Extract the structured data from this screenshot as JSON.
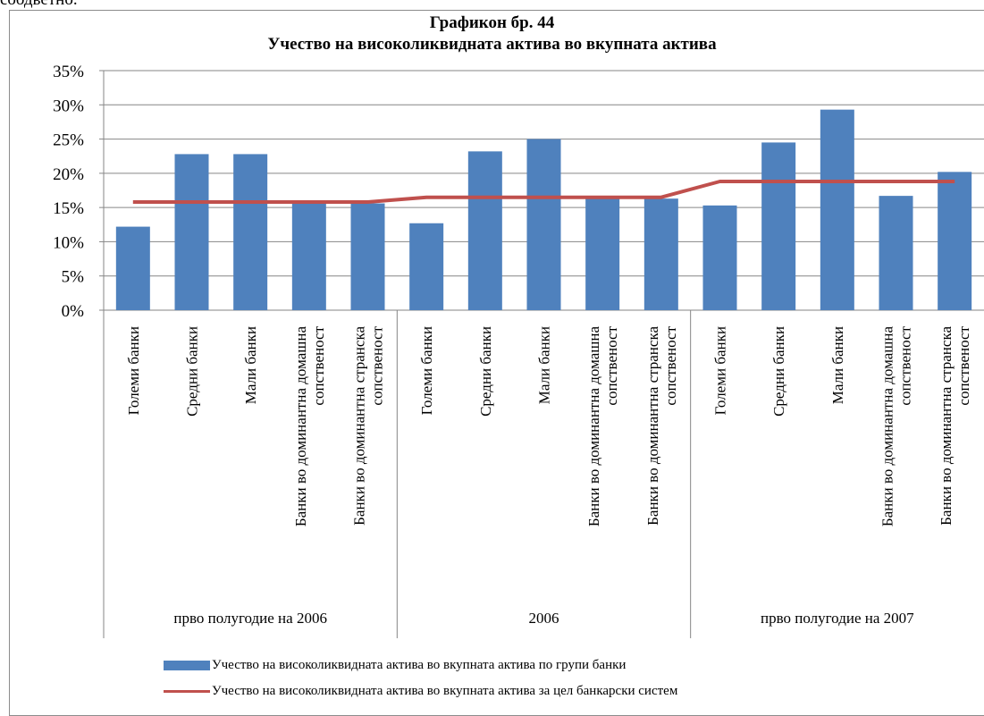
{
  "page_fragment": "соодветно.",
  "chart_data": {
    "type": "bar",
    "title": "Графикон бр. 44",
    "subtitle": "Учество на високоликвидната актива во вкупната актива",
    "ylim": [
      0,
      35
    ],
    "yticks": [
      "0%",
      "5%",
      "10%",
      "15%",
      "20%",
      "25%",
      "30%",
      "35%"
    ],
    "grid": true,
    "legend_position": "bottom",
    "groups": [
      {
        "label": "прво полугодие на 2006"
      },
      {
        "label": "2006"
      },
      {
        "label": "прво полугодие на  2007"
      }
    ],
    "categories": [
      [
        "Големи банки"
      ],
      [
        "Средни банки"
      ],
      [
        "Мали банки"
      ],
      [
        "Банки во доминантна домашна",
        "сопственост"
      ],
      [
        "Банки во доминантна странска",
        "сопственост"
      ],
      [
        "Големи банки"
      ],
      [
        "Средни банки"
      ],
      [
        "Мали банки"
      ],
      [
        "Банки во доминантна домашна",
        "сопственост"
      ],
      [
        "Банки во доминантна странска",
        "сопственост"
      ],
      [
        "Големи банки"
      ],
      [
        "Средни банки"
      ],
      [
        "Мали банки"
      ],
      [
        "Банки во доминантна домашна",
        "сопственост"
      ],
      [
        "Банки во доминантна странска",
        "сопственост"
      ]
    ],
    "series": [
      {
        "name": "Учество на високоликвидната  актива во вкупната актива по групи банки",
        "type": "bar",
        "color": "#4f81bd",
        "values": [
          12.2,
          22.8,
          22.8,
          15.6,
          15.6,
          12.7,
          23.2,
          25.0,
          16.3,
          16.3,
          15.3,
          24.5,
          29.3,
          16.7,
          20.2
        ]
      },
      {
        "name": "Учество на високоликвидната  актива во вкупната актива за цел банкарски систем",
        "type": "line",
        "color": "#c0504d",
        "values": [
          15.8,
          15.8,
          15.8,
          15.8,
          15.8,
          16.5,
          16.5,
          16.5,
          16.5,
          16.5,
          18.8,
          18.8,
          18.8,
          18.8,
          18.8
        ]
      }
    ]
  }
}
